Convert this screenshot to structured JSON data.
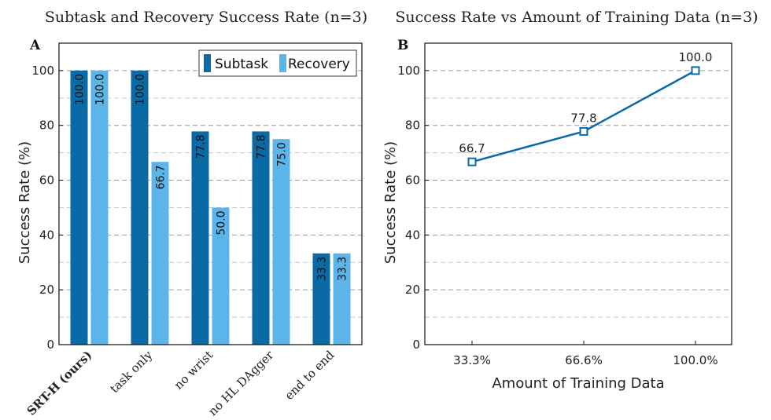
{
  "chart_data": [
    {
      "panel": "A",
      "type": "bar",
      "title": "Subtask and Recovery Success Rate (n=3)",
      "xlabel": "",
      "ylabel": "Success Rate (%)",
      "ylim": [
        0,
        110
      ],
      "yticks": [
        0,
        20,
        40,
        60,
        80,
        100
      ],
      "grid": true,
      "legend": "top-right",
      "categories": [
        "SRT-H (ours)",
        "task only",
        "no wrist",
        "no HL DAgger",
        "end to end"
      ],
      "series": [
        {
          "name": "Subtask",
          "color": "#0a6aa6",
          "values": [
            100.0,
            100.0,
            77.8,
            77.8,
            33.3
          ],
          "labels": [
            "100.0",
            "100.0",
            "77.8",
            "77.8",
            "33.3"
          ]
        },
        {
          "name": "Recovery",
          "color": "#5bb5e8",
          "values": [
            100.0,
            66.7,
            50.0,
            75.0,
            33.3
          ],
          "labels": [
            "100.0",
            "66.7",
            "50.0",
            "75.0",
            "33.3"
          ]
        }
      ]
    },
    {
      "panel": "B",
      "type": "line",
      "title": "Success Rate vs Amount of Training Data (n=3)",
      "xlabel": "Amount of Training Data",
      "ylabel": "Success Rate (%)",
      "ylim": [
        0,
        110
      ],
      "yticks": [
        0,
        20,
        40,
        60,
        80,
        100
      ],
      "grid": true,
      "categories": [
        "33.3%",
        "66.6%",
        "100.0%"
      ],
      "series": [
        {
          "name": "Success Rate",
          "color": "#0a6aa6",
          "values": [
            66.7,
            77.8,
            100.0
          ],
          "labels": [
            "66.7",
            "77.8",
            "100.0"
          ]
        }
      ]
    }
  ]
}
